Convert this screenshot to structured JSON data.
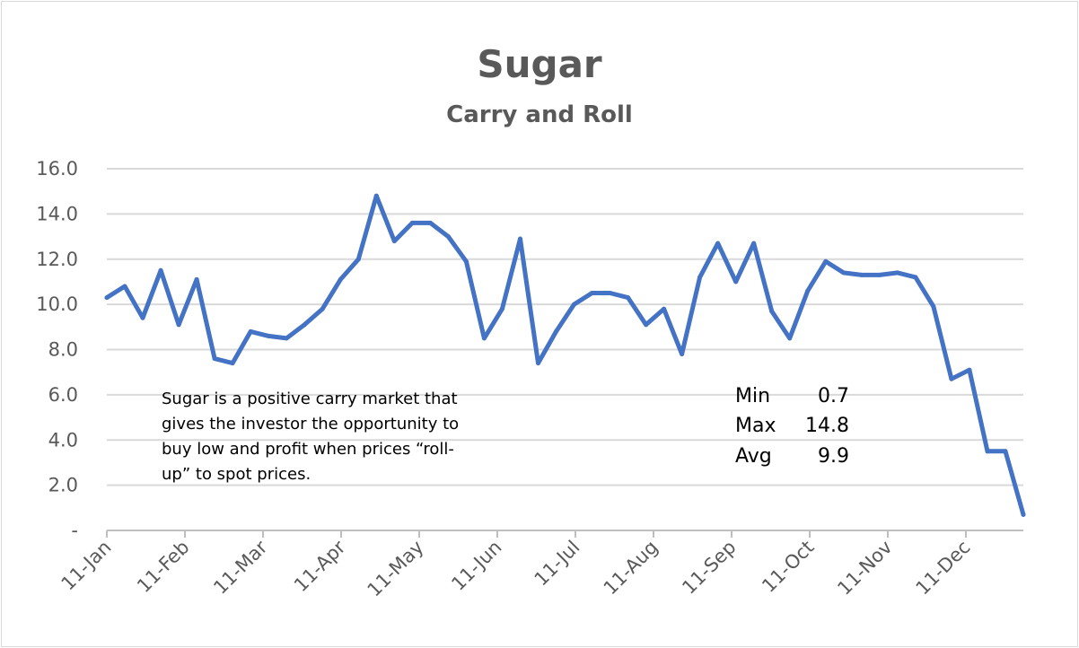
{
  "chart_data": {
    "type": "line",
    "title": "Sugar",
    "subtitle": "Carry and Roll",
    "xlabel": "",
    "ylabel": "",
    "ylim": [
      0,
      16
    ],
    "y_tick_labels": [
      "-",
      "2.0",
      "4.0",
      "6.0",
      "8.0",
      "10.0",
      "12.0",
      "14.0",
      "16.0"
    ],
    "x_tick_labels": [
      "11-Jan",
      "11-Feb",
      "11-Mar",
      "11-Apr",
      "11-May",
      "11-Jun",
      "11-Jul",
      "11-Aug",
      "11-Sep",
      "11-Oct",
      "11-Nov",
      "11-Dec"
    ],
    "gridlines": true,
    "legend": "none",
    "series": [
      {
        "name": "Sugar",
        "color": "#4472c4",
        "values": [
          10.3,
          10.8,
          9.4,
          11.5,
          9.1,
          11.1,
          7.6,
          7.4,
          8.8,
          8.6,
          8.5,
          9.1,
          9.8,
          11.1,
          12.0,
          14.8,
          12.8,
          13.6,
          13.6,
          13.0,
          11.9,
          8.5,
          9.8,
          12.9,
          7.4,
          8.8,
          10.0,
          10.5,
          10.5,
          10.3,
          9.1,
          9.8,
          7.8,
          11.2,
          12.7,
          11.0,
          12.7,
          9.7,
          8.5,
          10.6,
          11.9,
          11.4,
          11.3,
          11.3,
          11.4,
          11.2,
          9.9,
          6.7,
          7.1,
          3.5,
          3.5,
          0.7
        ]
      }
    ],
    "annotation": {
      "lines": [
        "Sugar is a positive carry market that",
        "gives the investor the opportunity to",
        "buy low and profit when prices “roll-",
        "up” to spot prices."
      ]
    },
    "stats": [
      {
        "label": "Min",
        "value": "0.7"
      },
      {
        "label": "Max",
        "value": "14.8"
      },
      {
        "label": "Avg",
        "value": "9.9"
      }
    ]
  }
}
